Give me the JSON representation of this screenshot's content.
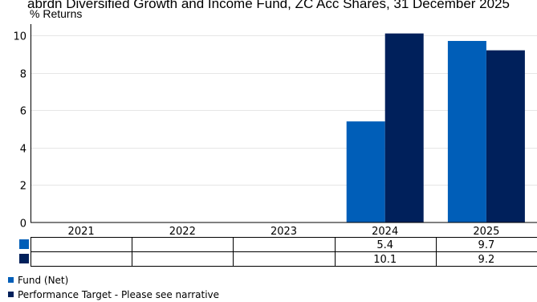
{
  "chart_data": {
    "type": "bar",
    "title": "abrdn Diversified Growth and Income Fund, ZC Acc Shares, 31 December 2025",
    "ylabel": "% Returns",
    "xlabel": "",
    "categories": [
      "2021",
      "2022",
      "2023",
      "2024",
      "2025"
    ],
    "ylim": [
      0,
      10.6
    ],
    "yticks": [
      0,
      2,
      4,
      6,
      8,
      10
    ],
    "grid": true,
    "series": [
      {
        "name": "Fund (Net)",
        "color": "#005eb8",
        "values": [
          null,
          null,
          null,
          5.4,
          9.7
        ],
        "labels": [
          "",
          "",
          "",
          "5.4",
          "9.7"
        ]
      },
      {
        "name": "Performance Target - Please see narrative",
        "color": "#00205b",
        "values": [
          null,
          null,
          null,
          10.1,
          9.2
        ],
        "labels": [
          "",
          "",
          "",
          "10.1",
          "9.2"
        ]
      }
    ],
    "legend_position": "bottom-left"
  }
}
